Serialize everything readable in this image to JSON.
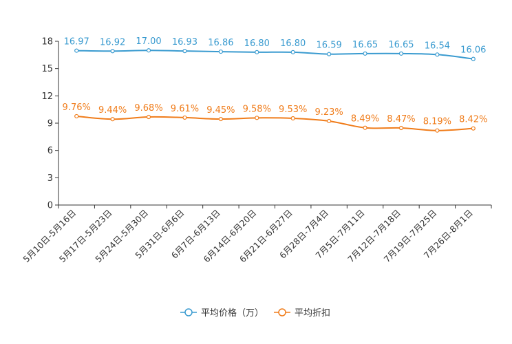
{
  "chart_data": {
    "type": "line",
    "title": "",
    "xlabel": "",
    "ylabel": "",
    "ylim": [
      0,
      18
    ],
    "yticks": [
      0,
      3,
      6,
      9,
      12,
      15,
      18
    ],
    "grid": false,
    "legend_position": "bottom",
    "categories": [
      "5月10日-5月16日",
      "5月17日-5月23日",
      "5月24日-5月30日",
      "5月31日-6月6日",
      "6月7日-6月13日",
      "6月14日-6月20日",
      "6月21日-6月27日",
      "6月28日-7月4日",
      "7月5日-7月11日",
      "7月12日-7月18日",
      "7月19日-7月25日",
      "7月26日-8月1日"
    ],
    "series": [
      {
        "name": "平均价格（万）",
        "color": "#3a9bd0",
        "values": [
          16.97,
          16.92,
          17.0,
          16.93,
          16.86,
          16.8,
          16.8,
          16.59,
          16.65,
          16.65,
          16.54,
          16.06
        ],
        "labels": [
          "16.97",
          "16.92",
          "17.00",
          "16.93",
          "16.86",
          "16.80",
          "16.80",
          "16.59",
          "16.65",
          "16.65",
          "16.54",
          "16.06"
        ]
      },
      {
        "name": "平均折扣",
        "color": "#f07c1a",
        "values": [
          9.76,
          9.44,
          9.68,
          9.61,
          9.45,
          9.58,
          9.53,
          9.23,
          8.49,
          8.47,
          8.19,
          8.42
        ],
        "labels": [
          "9.76%",
          "9.44%",
          "9.68%",
          "9.61%",
          "9.45%",
          "9.58%",
          "9.53%",
          "9.23%",
          "8.49%",
          "8.47%",
          "8.19%",
          "8.42%"
        ]
      }
    ]
  }
}
